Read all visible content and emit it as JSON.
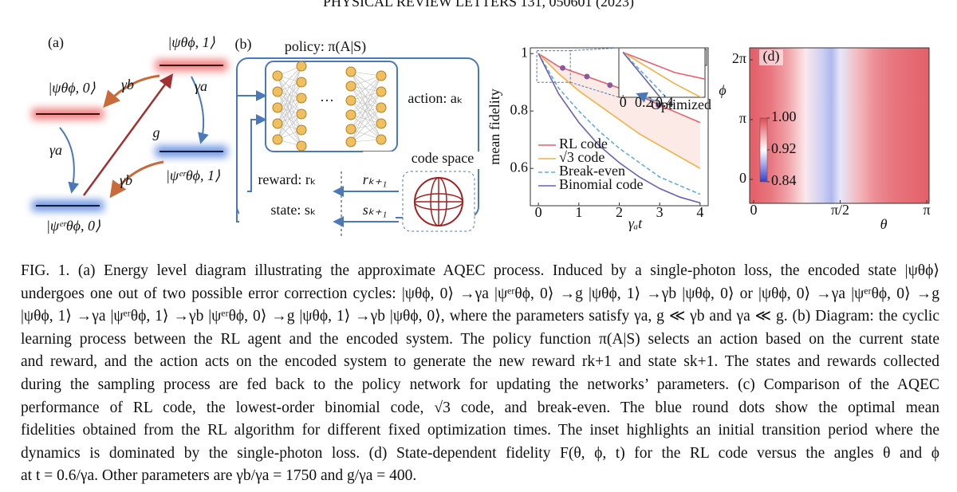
{
  "header": "PHYSICAL REVIEW LETTERS 131, 050601 (2023)",
  "panel_a": {
    "label": "(a)",
    "state_top": "|ψθϕ, 1⟩",
    "state_left": "|ψθϕ, 0⟩",
    "state_er1": "|ψᵉʳθϕ, 1⟩",
    "state_er0": "|ψᵉʳθϕ, 0⟩",
    "gamma_b_top": "γb",
    "gamma_a_top": "γa",
    "coupling": "g",
    "gamma_a_left": "γa",
    "gamma_b_bottom": "γb"
  },
  "panel_b": {
    "label": "(b)",
    "policy": "policy: π(A|S)",
    "action": "action: aₖ",
    "code_space": "code space",
    "reward": "reward: rₖ",
    "reward_next": "rₖ₊₁",
    "state": "state:  sₖ",
    "state_next": "sₖ₊₁"
  },
  "chart_data": [
    {
      "type": "line",
      "label": "(c)",
      "xlabel": "γₐt",
      "ylabel": "mean fidelity",
      "x": [
        0,
        0.5,
        1,
        1.5,
        2,
        2.5,
        3,
        3.5,
        4
      ],
      "series": [
        {
          "name": "RL code",
          "color": "#e8606a",
          "values": [
            1.0,
            0.955,
            0.93,
            0.905,
            0.88,
            0.855,
            0.82,
            0.79,
            0.76
          ]
        },
        {
          "name": "√3 code",
          "color": "#f5b041",
          "values": [
            1.0,
            0.93,
            0.87,
            0.82,
            0.77,
            0.72,
            0.68,
            0.64,
            0.6
          ]
        },
        {
          "name": "Break-even",
          "color": "#5dade2",
          "line_style": "dashed",
          "values": [
            1.0,
            0.88,
            0.8,
            0.73,
            0.67,
            0.62,
            0.57,
            0.54,
            0.51
          ]
        },
        {
          "name": "Binomial code",
          "color": "#6c5fb5",
          "values": [
            1.0,
            0.86,
            0.76,
            0.68,
            0.62,
            0.57,
            0.53,
            0.5,
            0.48
          ]
        }
      ],
      "fill_between": {
        "series": [
          0,
          1
        ],
        "color": "#fbe1dc"
      },
      "markers": {
        "color": "#8b5a9e",
        "x": [
          0.6,
          1.2,
          1.77,
          2.36,
          2.97
        ],
        "values": [
          0.95,
          0.92,
          0.89,
          0.86,
          0.82
        ]
      },
      "xlim": [
        -0.2,
        4.2
      ],
      "ylim": [
        0.47,
        1.02
      ],
      "xticks": [
        0,
        1,
        2,
        3,
        4
      ],
      "yticks": [
        0.6,
        0.8,
        1
      ],
      "legend": "lower left",
      "inset": {
        "xlim": [
          -0.04,
          0.79
        ],
        "ylim": [
          0.9,
          1.01
        ],
        "xticks": [
          0,
          0.2,
          0.4
        ],
        "annotation": "Optimized"
      }
    },
    {
      "type": "heatmap",
      "label": "(d)",
      "xlabel": "θ",
      "ylabel": "ϕ",
      "x": [
        0,
        0.314,
        0.628,
        0.942,
        1.257,
        1.414,
        1.571,
        1.885,
        2.199,
        2.513,
        2.827,
        3.142
      ],
      "values": [
        0.99,
        0.98,
        0.96,
        0.93,
        0.9,
        0.89,
        0.91,
        0.95,
        0.97,
        0.98,
        0.985,
        0.99
      ],
      "xlim": [
        -0.072,
        3.185
      ],
      "ylim": [
        -1.257,
        6.912
      ],
      "xticks": [
        0,
        {
          "value": 1.5708,
          "label": "π/2"
        },
        {
          "value": 3.1416,
          "label": "π"
        }
      ],
      "yticks": [
        0,
        {
          "value": 3.1416,
          "label": "π"
        },
        {
          "value": 6.2832,
          "label": "2π"
        }
      ],
      "colormap": [
        "#3040d0",
        "#ffffff",
        "#e04a55"
      ],
      "clim": [
        0.84,
        1.0
      ],
      "cticks": [
        {
          "value": 1.0,
          "label": "1.00"
        },
        0.92,
        0.84
      ]
    }
  ],
  "caption": {
    "lines": [
      "FIG. 1.   (a) Energy level diagram illustrating the approximate AQEC process. Induced by a single-photon loss, the encoded state |ψθϕ⟩",
      "undergoes one out of two possible error correction cycles: |ψθϕ, 0⟩ →γa |ψᵉʳθϕ, 0⟩ →g |ψθϕ, 1⟩ →γb |ψθϕ, 0⟩ or |ψθϕ, 0⟩ →γa |ψᵉʳθϕ, 0⟩ →g",
      "|ψθϕ, 1⟩ →γa |ψᵉʳθϕ, 1⟩ →γb |ψᵉʳθϕ, 0⟩ →g |ψθϕ, 1⟩ →γb |ψθϕ, 0⟩, where the parameters satisfy γa, g ≪ γb and γa ≪ g. (b) Diagram: the cyclic",
      "learning process between the RL agent and the encoded system. The policy function π(A|S) selects an action based on the current state",
      "and reward, and the action acts on the encoded system to generate the new reward rk+1 and state sk+1. The states and rewards collected",
      "during the sampling process are fed back to the policy network for updating the networks’ parameters. (c) Comparison of the AQEC",
      "performance of RL code, the lowest-order binomial code, √3 code, and break-even. The blue round dots show the optimal mean",
      "fidelities obtained from the RL algorithm for different fixed optimization times. The inset highlights an initial transition period where the",
      "dynamics is dominated by the single-photon loss. (d) State-dependent fidelity F(θ, ϕ, t) for the RL code versus the angles θ and ϕ",
      "at t = 0.6/γa. Other parameters are γb/γa = 1750 and g/γa = 400."
    ]
  }
}
